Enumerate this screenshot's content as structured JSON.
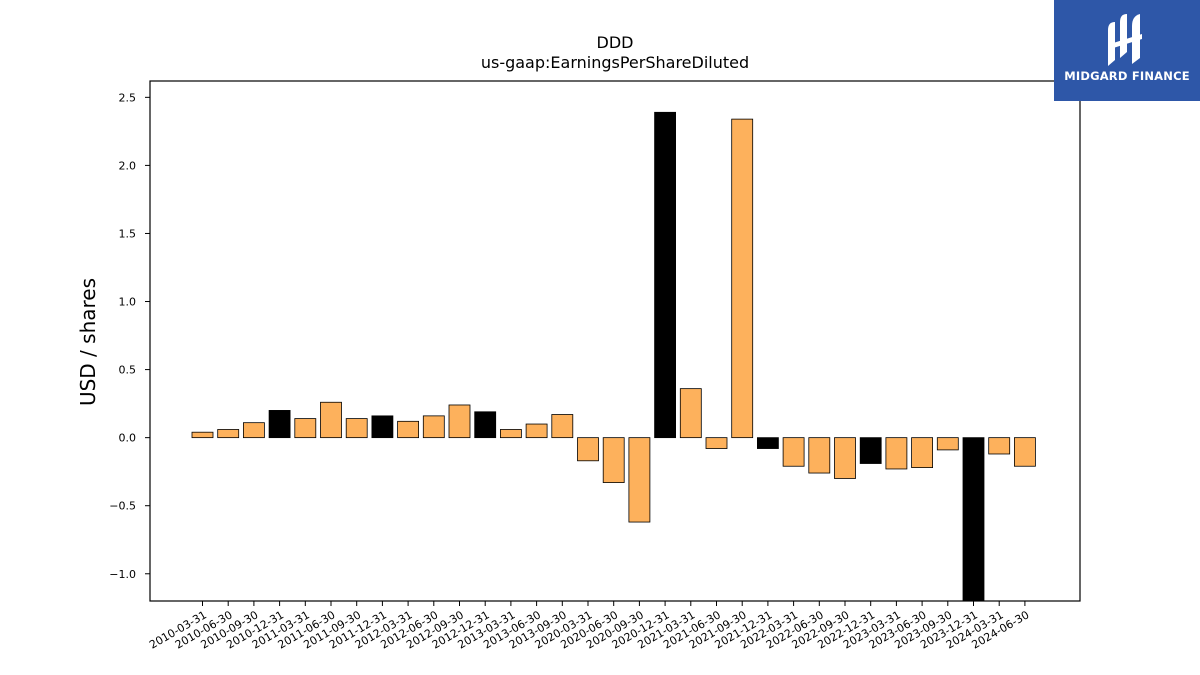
{
  "chart_data": {
    "type": "bar",
    "title": "DDD",
    "subtitle": "us-gaap:EarningsPerShareDiluted",
    "xlabel": "",
    "ylabel": "USD / shares",
    "ylim": [
      -1.2,
      2.62
    ],
    "yticks": [
      -1.0,
      -0.5,
      0.0,
      0.5,
      1.0,
      1.5,
      2.0,
      2.5
    ],
    "ytick_labels": [
      "−1.0",
      "−0.5",
      "0.0",
      "0.5",
      "1.0",
      "1.5",
      "2.0",
      "2.5"
    ],
    "grid": false,
    "legend": "none",
    "categories": [
      "2010-03-31",
      "2010-06-30",
      "2010-09-30",
      "2010-12-31",
      "2011-03-31",
      "2011-06-30",
      "2011-09-30",
      "2011-12-31",
      "2012-03-31",
      "2012-06-30",
      "2012-09-30",
      "2012-12-31",
      "2013-03-31",
      "2013-06-30",
      "2013-09-30",
      "2020-03-31",
      "2020-06-30",
      "2020-09-30",
      "2020-12-31",
      "2021-03-31",
      "2021-06-30",
      "2021-09-30",
      "2021-12-31",
      "2022-03-31",
      "2022-06-30",
      "2022-09-30",
      "2022-12-31",
      "2023-03-31",
      "2023-06-30",
      "2023-09-30",
      "2023-12-31",
      "2024-03-31",
      "2024-06-30"
    ],
    "values": [
      0.04,
      0.06,
      0.11,
      0.2,
      0.14,
      0.26,
      0.14,
      0.16,
      0.12,
      0.16,
      0.24,
      0.19,
      0.06,
      0.1,
      0.17,
      -0.17,
      -0.33,
      -0.62,
      2.39,
      0.36,
      -0.08,
      2.34,
      -0.08,
      -0.21,
      -0.26,
      -0.3,
      -0.19,
      -0.23,
      -0.22,
      -0.09,
      -1.2,
      -0.12,
      -0.21
    ],
    "quarter_end_q4": [
      false,
      false,
      false,
      true,
      false,
      false,
      false,
      true,
      false,
      false,
      false,
      true,
      false,
      false,
      false,
      false,
      false,
      false,
      true,
      false,
      false,
      false,
      true,
      false,
      false,
      false,
      true,
      false,
      false,
      false,
      true,
      false,
      false
    ],
    "colors": {
      "regular": "#fdb15c",
      "q4": "#000000",
      "edge": "#000000"
    }
  },
  "logo": {
    "text": "MIDGARD FINANCE",
    "bg": "#2e57a8"
  }
}
